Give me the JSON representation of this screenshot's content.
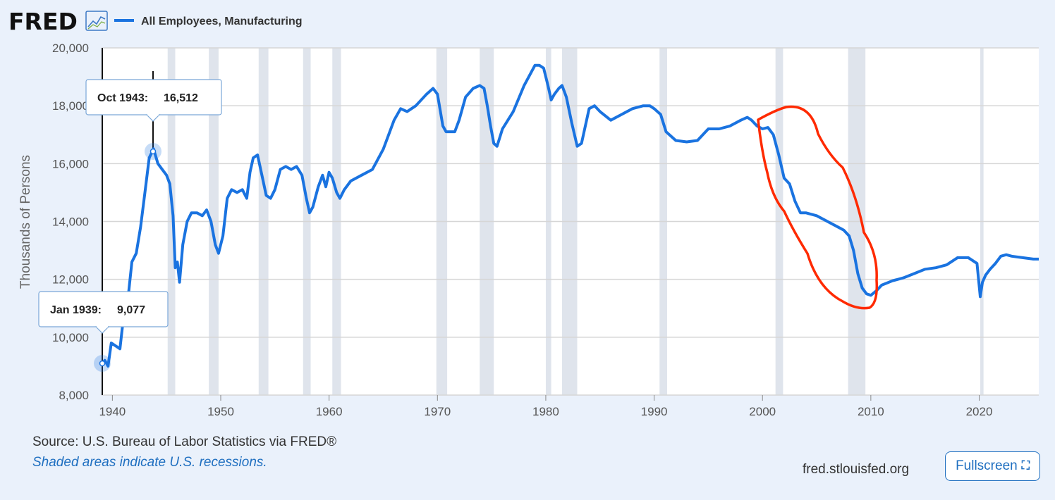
{
  "header": {
    "logo": "FRED",
    "legend_label": "All Employees, Manufacturing"
  },
  "colors": {
    "series": "#1a73e0",
    "annotation": "#ff2a00",
    "recession": "#dfe4ec",
    "background": "#eaf1fb"
  },
  "tooltips": [
    {
      "label": "Oct 1943:",
      "value": "16,512"
    },
    {
      "label": "Jan 1939:",
      "value": "9,077"
    }
  ],
  "footer": {
    "source": "Source: U.S. Bureau of Labor Statistics via FRED®",
    "note": "Shaded areas indicate U.S. recessions.",
    "site": "fred.stlouisfed.org",
    "fullscreen_label": "Fullscreen"
  },
  "chart_data": {
    "type": "line",
    "ylabel": "Thousands of Persons",
    "xlim": [
      1939,
      2025.5
    ],
    "ylim": [
      8000,
      20000
    ],
    "xticks": [
      1940,
      1950,
      1960,
      1970,
      1980,
      1990,
      2000,
      2010,
      2020
    ],
    "xtick_labels": [
      "1940",
      "1950",
      "1960",
      "1970",
      "1980",
      "1990",
      "2000",
      "2010",
      "2020"
    ],
    "yticks": [
      8000,
      10000,
      12000,
      14000,
      16000,
      18000,
      20000
    ],
    "ytick_labels": [
      "8,000",
      "10,000",
      "12,000",
      "14,000",
      "16,000",
      "18,000",
      "20,000"
    ],
    "grid": true,
    "recessions": [
      [
        1945.1,
        1945.8
      ],
      [
        1948.9,
        1949.8
      ],
      [
        1953.5,
        1954.4
      ],
      [
        1957.6,
        1958.3
      ],
      [
        1960.3,
        1961.1
      ],
      [
        1969.9,
        1970.9
      ],
      [
        1973.9,
        1975.2
      ],
      [
        1980.0,
        1980.5
      ],
      [
        1981.5,
        1982.9
      ],
      [
        1990.5,
        1991.2
      ],
      [
        2001.2,
        2001.9
      ],
      [
        2007.9,
        2009.5
      ],
      [
        2020.1,
        2020.4
      ]
    ],
    "series": [
      {
        "x": [
          1939.0,
          1939.3,
          1939.6,
          1939.9,
          1940.3,
          1940.7,
          1941.0,
          1941.4,
          1941.8,
          1942.2,
          1942.6,
          1943.0,
          1943.4,
          1943.8,
          1944.2,
          1944.6,
          1945.0,
          1945.3,
          1945.6,
          1945.8,
          1946.0,
          1946.2,
          1946.5,
          1946.9,
          1947.3,
          1947.8,
          1948.3,
          1948.7,
          1949.1,
          1949.5,
          1949.8,
          1950.2,
          1950.6,
          1951.0,
          1951.5,
          1952.0,
          1952.4,
          1952.7,
          1953.0,
          1953.4,
          1953.8,
          1954.2,
          1954.6,
          1955.0,
          1955.5,
          1956.0,
          1956.5,
          1957.0,
          1957.5,
          1957.9,
          1958.2,
          1958.5,
          1959.0,
          1959.4,
          1959.7,
          1960.0,
          1960.3,
          1960.7,
          1961.0,
          1961.4,
          1962.0,
          1963.0,
          1964.0,
          1965.0,
          1966.0,
          1966.6,
          1967.2,
          1968.0,
          1969.0,
          1969.6,
          1970.0,
          1970.5,
          1970.8,
          1971.2,
          1971.6,
          1972.0,
          1972.6,
          1973.3,
          1973.9,
          1974.3,
          1974.6,
          1974.9,
          1975.2,
          1975.5,
          1976.0,
          1977.0,
          1978.0,
          1979.0,
          1979.4,
          1979.8,
          1980.2,
          1980.5,
          1980.8,
          1981.2,
          1981.5,
          1981.9,
          1982.4,
          1982.9,
          1983.3,
          1984.0,
          1984.5,
          1985.0,
          1986.0,
          1987.0,
          1988.0,
          1989.0,
          1989.6,
          1990.0,
          1990.6,
          1991.1,
          1991.7,
          1992.0,
          1993.0,
          1994.0,
          1995.0,
          1996.0,
          1997.0,
          1998.0,
          1998.6,
          1999.0,
          1999.5,
          2000.0,
          2000.5,
          2001.0,
          2001.5,
          2002.0,
          2002.5,
          2003.0,
          2003.5,
          2004.0,
          2005.0,
          2006.0,
          2007.0,
          2007.5,
          2008.0,
          2008.4,
          2008.8,
          2009.2,
          2009.6,
          2010.0,
          2010.5,
          2011.0,
          2012.0,
          2013.0,
          2014.0,
          2015.0,
          2016.0,
          2017.0,
          2018.0,
          2019.0,
          2019.8,
          2020.1,
          2020.3,
          2020.6,
          2021.0,
          2021.5,
          2022.0,
          2022.5,
          2023.0,
          2024.0,
          2025.0,
          2025.5
        ],
        "y": [
          9077,
          9200,
          9000,
          9800,
          9700,
          9600,
          10600,
          11200,
          12600,
          12900,
          13800,
          15000,
          16200,
          16512,
          16000,
          15800,
          15600,
          15300,
          14200,
          12400,
          12600,
          11900,
          13200,
          14000,
          14300,
          14300,
          14200,
          14400,
          14000,
          13200,
          12900,
          13500,
          14800,
          15100,
          15000,
          15100,
          14800,
          15700,
          16200,
          16300,
          15600,
          14900,
          14800,
          15100,
          15800,
          15900,
          15800,
          15900,
          15600,
          14800,
          14300,
          14500,
          15200,
          15600,
          15200,
          15700,
          15500,
          15000,
          14800,
          15100,
          15400,
          15600,
          15800,
          16500,
          17500,
          17900,
          17800,
          18000,
          18400,
          18600,
          18400,
          17300,
          17100,
          17100,
          17100,
          17500,
          18300,
          18600,
          18700,
          18600,
          18000,
          17300,
          16700,
          16600,
          17200,
          17800,
          18700,
          19400,
          19400,
          19300,
          18700,
          18200,
          18400,
          18600,
          18700,
          18300,
          17400,
          16600,
          16700,
          17900,
          18000,
          17800,
          17500,
          17700,
          17900,
          18000,
          18000,
          17900,
          17700,
          17100,
          16900,
          16800,
          16750,
          16800,
          17200,
          17200,
          17300,
          17500,
          17600,
          17500,
          17300,
          17200,
          17250,
          17000,
          16300,
          15500,
          15300,
          14700,
          14300,
          14300,
          14200,
          14000,
          13800,
          13700,
          13500,
          13000,
          12200,
          11700,
          11500,
          11450,
          11600,
          11800,
          11950,
          12050,
          12200,
          12350,
          12400,
          12500,
          12750,
          12750,
          12550,
          11400,
          11900,
          12150,
          12350,
          12550,
          12800,
          12850,
          12800,
          12750,
          12700,
          12700
        ]
      }
    ]
  }
}
